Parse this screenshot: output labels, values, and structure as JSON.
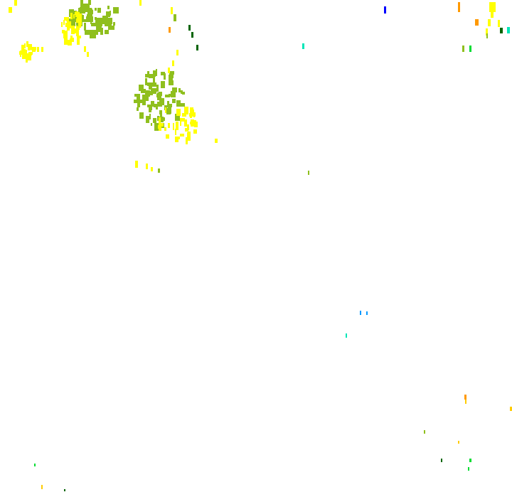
{
  "map": {
    "background": "#ffffff",
    "class_colors": {
      "yellow": "#ffff00",
      "olive": "#8fbf1e",
      "dark_green": "#006400",
      "orange": "#ff9900",
      "blue": "#0000ff",
      "cyan": "#00e6b8",
      "light_blue": "#0099ff",
      "green": "#00dd33",
      "gold": "#ffcc00"
    }
  }
}
